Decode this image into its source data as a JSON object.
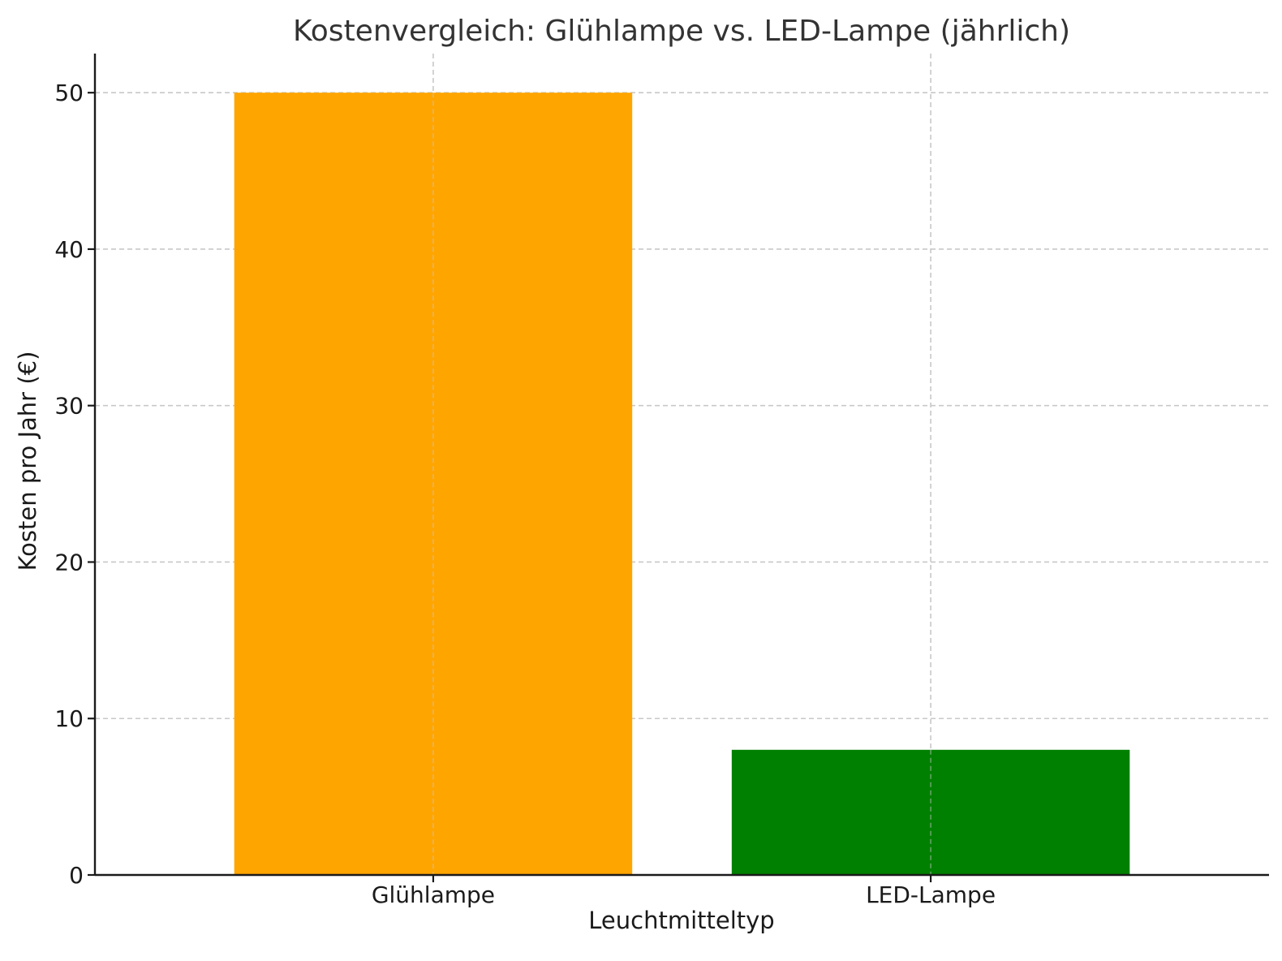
{
  "chart_data": {
    "type": "bar",
    "title": "Kostenvergleich: Glühlampe vs. LED-Lampe (jährlich)",
    "xlabel": "Leuchtmitteltyp",
    "ylabel": "Kosten pro Jahr (€)",
    "categories": [
      "Glühlampe",
      "LED-Lampe"
    ],
    "values": [
      50,
      8
    ],
    "colors": [
      "#FFA500",
      "#008000"
    ],
    "ylim": [
      0,
      52.5
    ],
    "yticks": [
      0,
      10,
      20,
      30,
      40,
      50
    ],
    "grid": true,
    "legend": false
  }
}
